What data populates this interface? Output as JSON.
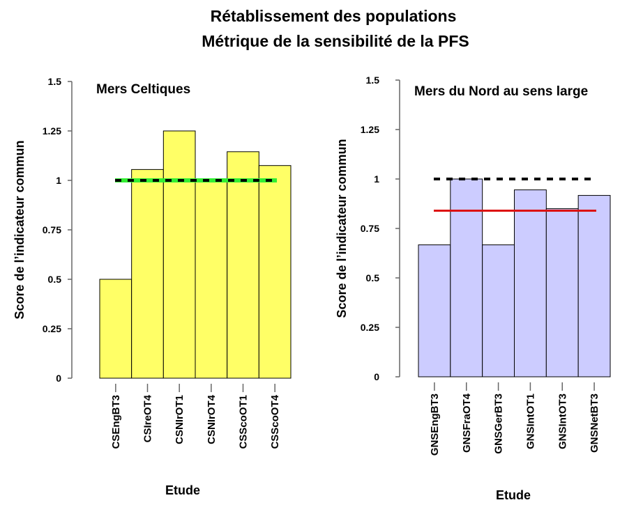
{
  "title": {
    "line1": "Rétablissement des populations",
    "line2": "Métrique de la sensibilité de la PFS"
  },
  "chart_data": [
    {
      "type": "bar",
      "title": "Mers Celtiques",
      "xlabel": "Etude",
      "ylabel": "Score de l’indicateur commun",
      "ylim": [
        0,
        1.5
      ],
      "yticks": [
        "0",
        "0.25",
        "0.5",
        "0.75",
        "1",
        "1.25",
        "1.5"
      ],
      "categories": [
        "CSEngBT3",
        "CSIreOT4",
        "CSNIrOT1",
        "CSNIrOT4",
        "CSScoOT1",
        "CSScoOT4"
      ],
      "values": [
        0.5,
        1.055,
        1.25,
        1.0,
        1.145,
        1.075
      ],
      "bar_color": "#ffff66",
      "reference_lines": [
        {
          "value": 1.0,
          "color": "#33ee33",
          "style": "solid"
        },
        {
          "value": 1.0,
          "color": "#000000",
          "style": "dashed"
        }
      ],
      "grid": false
    },
    {
      "type": "bar",
      "title": "Mers du Nord au sens large",
      "xlabel": "Etude",
      "ylabel": "Score de l’indicateur commun",
      "ylim": [
        0,
        1.5
      ],
      "yticks": [
        "0",
        "0.25",
        "0.5",
        "0.75",
        "1",
        "1.25",
        "1.5"
      ],
      "categories": [
        "GNSEngBT3",
        "GNSFraOT4",
        "GNSGerBT3",
        "GNSIntOT1",
        "GNSIntOT3",
        "GNSNetBT3"
      ],
      "values": [
        0.667,
        1.0,
        0.667,
        0.945,
        0.85,
        0.917
      ],
      "bar_color": "#ccccff",
      "reference_lines": [
        {
          "value": 0.84,
          "color": "#dd1111",
          "style": "solid"
        },
        {
          "value": 1.0,
          "color": "#000000",
          "style": "dashed"
        }
      ],
      "grid": false
    }
  ]
}
